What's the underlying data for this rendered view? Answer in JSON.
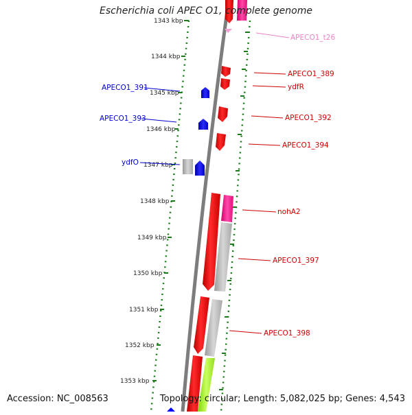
{
  "title": "Escherichia coli APEC O1, complete genome",
  "footer": {
    "accession": "Accession: NC_008563",
    "topology": "Topology: circular; Length: 5,082,025 bp; Genes: 4,543"
  },
  "colors": {
    "forward_cds": "#ff0000",
    "reverse_cds": "#0000ff",
    "rna": "#ff1493",
    "hit": "#b4b4b4",
    "lime": "#a6f028",
    "tick": "#1a7a1a",
    "backbone": "#7d7d7d"
  },
  "ruler": [
    {
      "label": "1343 kbp"
    },
    {
      "label": "1344 kbp"
    },
    {
      "label": "1345 kbp"
    },
    {
      "label": "1346 kbp"
    },
    {
      "label": "1347 kbp"
    },
    {
      "label": "1348 kbp"
    },
    {
      "label": "1349 kbp"
    },
    {
      "label": "1350 kbp"
    },
    {
      "label": "1351 kbp"
    },
    {
      "label": "1352 kbp"
    },
    {
      "label": "1353 kbp"
    }
  ],
  "gene_labels": [
    {
      "name": "APECO1_t26",
      "color": "#ee82c8"
    },
    {
      "name": "APECO1_389",
      "color": "#cc0000"
    },
    {
      "name": "ydfR",
      "color": "#cc0000"
    },
    {
      "name": "APECO1_391",
      "color": "#0000cc"
    },
    {
      "name": "APECO1_393",
      "color": "#0000cc"
    },
    {
      "name": "APECO1_392",
      "color": "#cc0000"
    },
    {
      "name": "APECO1_394",
      "color": "#cc0000"
    },
    {
      "name": "ydfO",
      "color": "#0000cc"
    },
    {
      "name": "nohA2",
      "color": "#cc0000"
    },
    {
      "name": "APECO1_397",
      "color": "#cc0000"
    },
    {
      "name": "APECO1_398",
      "color": "#cc0000"
    }
  ]
}
